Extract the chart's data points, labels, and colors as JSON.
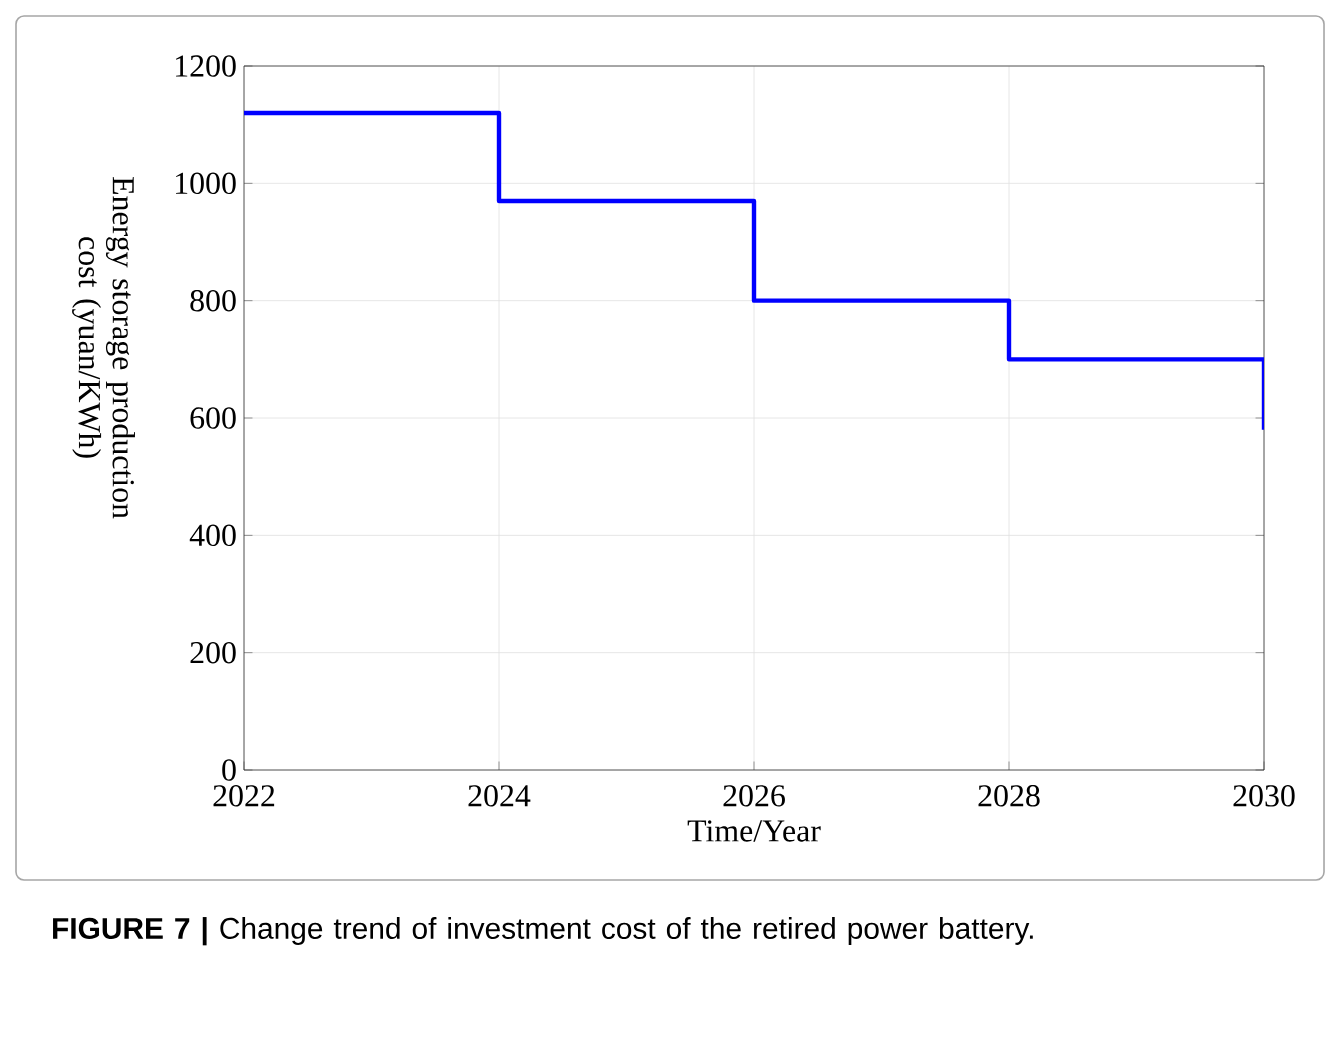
{
  "chart_data": {
    "type": "step",
    "xlabel": "Time/Year",
    "ylabel": "Energy storage production cost (yuan/KWh)",
    "x": [
      2022,
      2024,
      2026,
      2028,
      2030
    ],
    "series": [
      {
        "color": "#0000ff",
        "values": [
          1120,
          970,
          800,
          700,
          580
        ]
      }
    ],
    "xlim": [
      2022,
      2030
    ],
    "xticks": [
      2022,
      2024,
      2026,
      2028,
      2030
    ],
    "ylim": [
      0,
      1200
    ],
    "yticks": [
      0,
      200,
      400,
      600,
      800,
      1000,
      1200
    ],
    "grid": true,
    "marker": "none",
    "line_style": "solid",
    "annotations": [
      "**FIGURE 7 |** Change trend of investment cost of the retired power battery."
    ]
  }
}
